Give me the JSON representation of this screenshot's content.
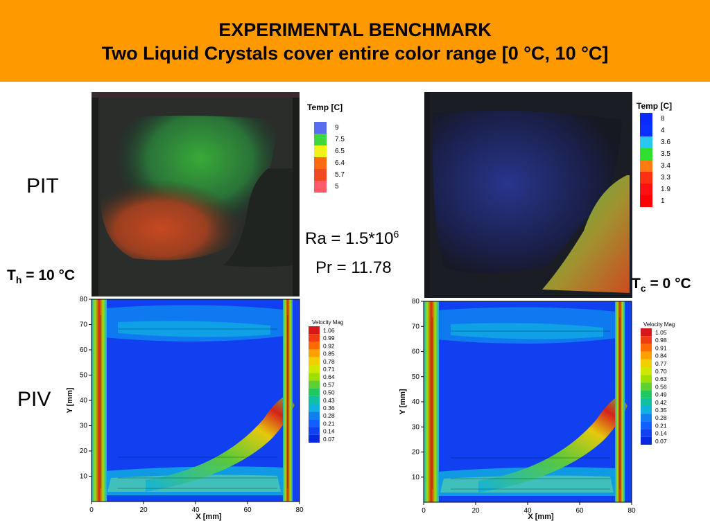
{
  "header": {
    "title": "EXPERIMENTAL BENCHMARK",
    "subtitle": "Two Liquid Crystals cover entire color range [0 °C, 10 °C]",
    "background": "#ff9900"
  },
  "labels": {
    "pit": "PIT",
    "piv": "PIV",
    "ra_prefix": "Ra = 1.5*10",
    "ra_exp": "6",
    "pr": "Pr = 11.78",
    "th_T": "T",
    "th_sub": "h",
    "th_rest": " = 10 °C",
    "tc_T": "T",
    "tc_sub": "c",
    "tc_rest": " = 0 °C"
  },
  "pit_left": {
    "legend_title": "Temp [C]",
    "entries": [
      {
        "value": "9",
        "color": "#5a6cf0"
      },
      {
        "value": "7.5",
        "color": "#3dd83d"
      },
      {
        "value": "6.5",
        "color": "#f2f21a"
      },
      {
        "value": "6.4",
        "color": "#ff6a10"
      },
      {
        "value": "5.7",
        "color": "#f04a20"
      },
      {
        "value": "5",
        "color": "#ff5a6a"
      }
    ]
  },
  "pit_right": {
    "legend_title": "Temp [C]",
    "entries": [
      {
        "value": "8",
        "color": "#0a2aff"
      },
      {
        "value": "4",
        "color": "#0a30ff"
      },
      {
        "value": "3.6",
        "color": "#28c8f0"
      },
      {
        "value": "3.5",
        "color": "#30e030"
      },
      {
        "value": "3.4",
        "color": "#ff7a10"
      },
      {
        "value": "3.3",
        "color": "#ff3010"
      },
      {
        "value": "1.9",
        "color": "#ff1010"
      },
      {
        "value": "1",
        "color": "#ff0000"
      }
    ]
  },
  "piv_left": {
    "legend_title": "Velocity Mag",
    "values": [
      "1.06",
      "0.99",
      "0.92",
      "0.85",
      "0.78",
      "0.71",
      "0.64",
      "0.57",
      "0.50",
      "0.43",
      "0.36",
      "0.28",
      "0.21",
      "0.14",
      "0.07"
    ],
    "xlabel": "X [mm]",
    "ylabel": "Y [mm]",
    "xticks": [
      "0",
      "20",
      "40",
      "60",
      "80"
    ],
    "yticks": [
      "10",
      "20",
      "30",
      "40",
      "50",
      "60",
      "70",
      "80"
    ]
  },
  "piv_right": {
    "legend_title": "Velocity Mag",
    "values": [
      "1.05",
      "0.98",
      "0.91",
      "0.84",
      "0.77",
      "0.70",
      "0.63",
      "0.56",
      "0.49",
      "0.42",
      "0.35",
      "0.28",
      "0.21",
      "0.14",
      "0.07"
    ],
    "xlabel": "X [mm]",
    "ylabel": "Y [mm]",
    "xticks": [
      "0",
      "20",
      "40",
      "60",
      "80"
    ],
    "yticks": [
      "10",
      "20",
      "30",
      "40",
      "50",
      "60",
      "70",
      "80"
    ]
  },
  "colormap": [
    "#d81818",
    "#f03c10",
    "#ff6a00",
    "#ffa000",
    "#f0d000",
    "#d0e800",
    "#a0e000",
    "#60d030",
    "#20c860",
    "#10c0a0",
    "#10b0e0",
    "#1080f0",
    "#1060ff",
    "#1040f0",
    "#0828e0"
  ]
}
